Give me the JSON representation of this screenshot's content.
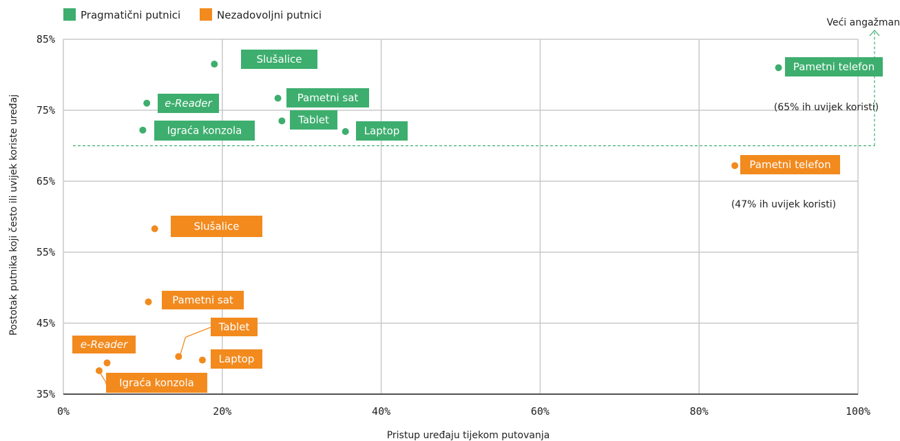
{
  "chart_data": {
    "type": "scatter",
    "xlabel": "Pristup uređaju tijekom putovanja",
    "ylabel": "Postotak putnika koji često ili uvijek koriste uređaj",
    "xlim": [
      0,
      100
    ],
    "ylim": [
      35,
      85
    ],
    "x_ticks": [
      "0%",
      "20%",
      "40%",
      "60%",
      "80%",
      "100%"
    ],
    "y_ticks": [
      "85%",
      "75%",
      "65%",
      "55%",
      "45%",
      "35%"
    ],
    "grid": true,
    "legend_position": "top-left",
    "threshold_line": {
      "y": 70,
      "label": "Veći angažman"
    },
    "series": [
      {
        "name": "Pragmatični putnici",
        "color": "#3dae6e",
        "points": [
          {
            "label": "Slušalice",
            "x": 19,
            "y": 81.5
          },
          {
            "label": "e-Reader",
            "x": 10.5,
            "y": 76,
            "italic": true
          },
          {
            "label": "Igraća konzola",
            "x": 10,
            "y": 72.2
          },
          {
            "label": "Pametni sat",
            "x": 27,
            "y": 76.7
          },
          {
            "label": "Tablet",
            "x": 27.5,
            "y": 73.5
          },
          {
            "label": "Laptop",
            "x": 35.5,
            "y": 72
          },
          {
            "label": "Pametni telefon",
            "x": 90,
            "y": 81
          }
        ]
      },
      {
        "name": "Nezadovoljni putnici",
        "color": "#f28a1e",
        "points": [
          {
            "label": "Slušalice",
            "x": 11.5,
            "y": 58.3
          },
          {
            "label": "Pametni sat",
            "x": 10.7,
            "y": 48
          },
          {
            "label": "Tablet",
            "x": 14.5,
            "y": 40.3
          },
          {
            "label": "Laptop",
            "x": 17.5,
            "y": 39.8
          },
          {
            "label": "e-Reader",
            "x": 5.5,
            "y": 39.4,
            "italic": true
          },
          {
            "label": "Igraća konzola",
            "x": 4.5,
            "y": 38.3
          },
          {
            "label": "Pametni telefon",
            "x": 84.5,
            "y": 67.2
          }
        ]
      }
    ],
    "annotations": [
      {
        "text": "(65% ih uvijek koristi)",
        "series": "Pragmatični putnici"
      },
      {
        "text": "(47% ih uvijek koristi)",
        "series": "Nezadovoljni putnici"
      }
    ]
  }
}
